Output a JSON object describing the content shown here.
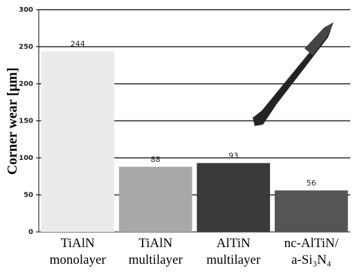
{
  "chart_data": {
    "type": "bar",
    "y_label": "Corner wear [μm]",
    "categories": [
      "TiAlN monolayer",
      "TiAlN multilayer",
      "AlTiN multilayer",
      "nc-AlTiN/ a-Si₃N₄"
    ],
    "values": [
      244,
      88,
      93,
      56
    ],
    "colors": [
      "#ebebeb",
      "#a8a8a8",
      "#3a3a3a",
      "#555555"
    ],
    "ylim": [
      0,
      300
    ],
    "yticks": [
      0,
      50,
      100,
      150,
      200,
      250,
      300
    ],
    "grid": true
  }
}
